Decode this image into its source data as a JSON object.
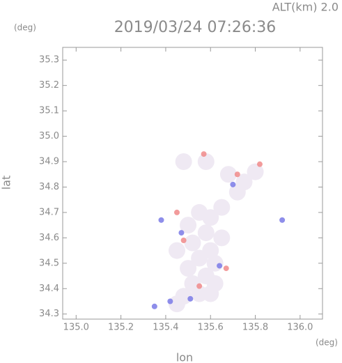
{
  "chart_data": {
    "type": "scatter",
    "title": "2019/03/24 07:26:36",
    "subtitle": "ALT(km) 2.0",
    "x_label": "lon",
    "y_label": "lat",
    "x_unit": "(deg)",
    "y_unit": "(deg)",
    "xlim": [
      134.94,
      136.1
    ],
    "ylim": [
      34.28,
      35.35
    ],
    "xticks": [
      {
        "value": 135,
        "label": "135.0"
      },
      135.2,
      135.4,
      135.6,
      135.8,
      {
        "value": 136,
        "label": "136.0"
      }
    ],
    "yticks": [
      34.3,
      34.4,
      34.5,
      34.6,
      34.7,
      34.8,
      34.9,
      {
        "value": 35,
        "label": "35.0"
      },
      35.1,
      35.2,
      35.3
    ],
    "series": [
      {
        "color": "#efe9f3",
        "x": [
          135.55,
          135.6,
          135.5,
          135.58,
          135.52,
          135.6,
          135.55,
          135.62,
          135.5,
          135.58,
          135.62,
          135.52,
          135.55,
          135.48,
          135.6,
          135.45,
          135.68,
          135.75,
          135.8,
          135.72,
          135.48,
          135.58,
          135.65,
          135.45,
          135.65
        ],
        "values": [
          34.7,
          34.68,
          34.65,
          34.62,
          34.58,
          34.55,
          34.52,
          34.5,
          34.48,
          34.45,
          34.42,
          34.42,
          34.38,
          34.37,
          34.38,
          34.34,
          34.85,
          34.82,
          34.86,
          34.78,
          34.9,
          34.9,
          34.72,
          34.55,
          34.6
        ]
      },
      {
        "color": "#f08a8a",
        "x": [
          135.45,
          135.57,
          135.67,
          135.55,
          135.82,
          135.72,
          135.48
        ],
        "values": [
          34.7,
          34.93,
          34.48,
          34.41,
          34.89,
          34.85,
          34.59
        ]
      },
      {
        "color": "#7a7ae6",
        "x": [
          135.42,
          135.51,
          135.92,
          135.47,
          135.7,
          135.38,
          135.64,
          135.35
        ],
        "values": [
          34.35,
          34.36,
          34.67,
          34.62,
          34.81,
          34.67,
          34.49,
          34.33
        ]
      }
    ]
  }
}
